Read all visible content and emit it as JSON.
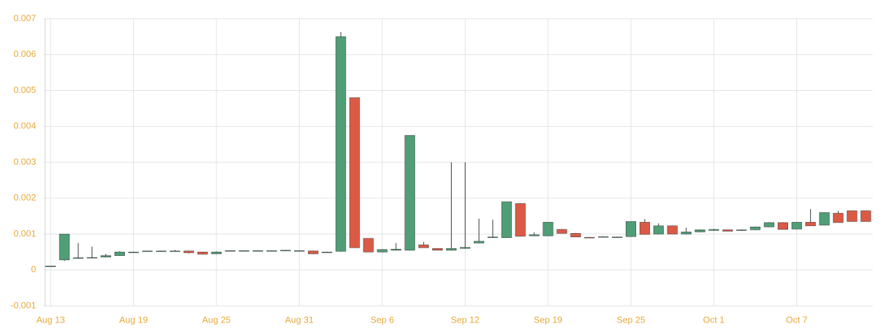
{
  "chart_data": {
    "type": "candlestick",
    "categories": [
      "Aug 13",
      null,
      null,
      null,
      null,
      null,
      "Aug 19",
      null,
      null,
      null,
      null,
      null,
      "Aug 25",
      null,
      null,
      null,
      null,
      null,
      "Aug 31",
      null,
      null,
      null,
      null,
      null,
      "Sep 6",
      null,
      null,
      null,
      null,
      null,
      "Sep 12",
      null,
      null,
      null,
      null,
      null,
      "Sep 19",
      null,
      null,
      null,
      null,
      null,
      "Sep 25",
      null,
      null,
      null,
      null,
      null,
      "Oct 1",
      null,
      null,
      null,
      null,
      null,
      "Oct 7",
      null,
      null,
      null,
      null,
      null
    ],
    "open": [
      0.00011,
      0.00028,
      0.00033,
      0.00034,
      0.00036,
      0.0004,
      0.0005,
      0.00053,
      0.00053,
      0.00053,
      0.00053,
      0.0005,
      0.00045,
      0.00053,
      0.00054,
      0.00054,
      0.00054,
      0.00055,
      0.00054,
      0.00053,
      0.0005,
      0.00052,
      0.0048,
      0.00088,
      0.0005,
      0.00055,
      0.00055,
      0.0007,
      0.0006,
      0.00055,
      0.0006,
      0.00075,
      0.0009,
      0.0009,
      0.00185,
      0.00095,
      0.00095,
      0.00113,
      0.00102,
      0.00091,
      0.00093,
      0.00092,
      0.00093,
      0.00133,
      0.001,
      0.00123,
      0.001,
      0.00106,
      0.0011,
      0.00112,
      0.0011,
      0.00112,
      0.0012,
      0.00132,
      0.00114,
      0.00133,
      0.00125,
      0.00158,
      0.00165,
      0.00165
    ],
    "high": [
      0.00011,
      0.001,
      0.00075,
      0.00065,
      0.00045,
      0.00052,
      0.00051,
      0.00054,
      0.00054,
      0.00056,
      0.00054,
      0.00051,
      0.00052,
      0.00055,
      0.00055,
      0.00055,
      0.00055,
      0.00056,
      0.00055,
      0.00054,
      0.00051,
      0.00663,
      0.0048,
      0.00088,
      0.00058,
      0.00075,
      0.00375,
      0.00078,
      0.00061,
      0.003,
      0.003,
      0.00143,
      0.0014,
      0.0019,
      0.00186,
      0.00105,
      0.00133,
      0.00114,
      0.00103,
      0.00092,
      0.00094,
      0.00093,
      0.00135,
      0.00142,
      0.0013,
      0.00124,
      0.00118,
      0.00113,
      0.00115,
      0.00113,
      0.00113,
      0.00121,
      0.00133,
      0.00133,
      0.00134,
      0.0017,
      0.0016,
      0.00165,
      0.00166,
      0.00166
    ],
    "low": [
      0.00011,
      0.00025,
      0.00032,
      0.00033,
      0.00035,
      0.00039,
      0.00049,
      0.00052,
      0.00052,
      0.00052,
      0.00046,
      0.00043,
      0.00044,
      0.00052,
      0.00053,
      0.00053,
      0.00053,
      0.00054,
      0.00053,
      0.00044,
      0.00048,
      0.00051,
      0.00062,
      0.0005,
      0.00049,
      0.00054,
      0.00054,
      0.00062,
      0.00055,
      0.00054,
      0.00059,
      0.00074,
      0.00089,
      0.0009,
      0.00094,
      0.00094,
      0.00094,
      0.00102,
      0.00092,
      0.0009,
      0.00092,
      0.00091,
      0.00092,
      0.00099,
      0.00099,
      0.001,
      0.00099,
      0.00105,
      0.00109,
      0.00108,
      0.00109,
      0.00111,
      0.00119,
      0.00113,
      0.00113,
      0.00123,
      0.00124,
      0.00132,
      0.00135,
      0.00135
    ],
    "close": [
      0.00011,
      0.001,
      0.00034,
      0.00035,
      0.0004,
      0.0005,
      0.0005,
      0.00053,
      0.00053,
      0.00053,
      0.00048,
      0.00044,
      0.0005,
      0.00054,
      0.00054,
      0.00054,
      0.00054,
      0.00055,
      0.00054,
      0.00045,
      0.0005,
      0.0065,
      0.00062,
      0.0005,
      0.00057,
      0.00058,
      0.00375,
      0.00062,
      0.00055,
      0.0006,
      0.00063,
      0.0008,
      0.00092,
      0.0019,
      0.00094,
      0.00098,
      0.00133,
      0.00102,
      0.00092,
      0.0009,
      0.00093,
      0.00092,
      0.00135,
      0.00099,
      0.00123,
      0.001,
      0.00106,
      0.00112,
      0.00113,
      0.00108,
      0.00112,
      0.0012,
      0.00132,
      0.00113,
      0.00133,
      0.00123,
      0.0016,
      0.00132,
      0.00135,
      0.00135
    ],
    "up_color": "#4f9e76",
    "down_color": "#db5a45",
    "ylim": [
      -0.001,
      0.007
    ],
    "yticks": [
      -0.001,
      0,
      0.001,
      0.002,
      0.003,
      0.004,
      0.005,
      0.006,
      0.007
    ],
    "grid": true
  }
}
